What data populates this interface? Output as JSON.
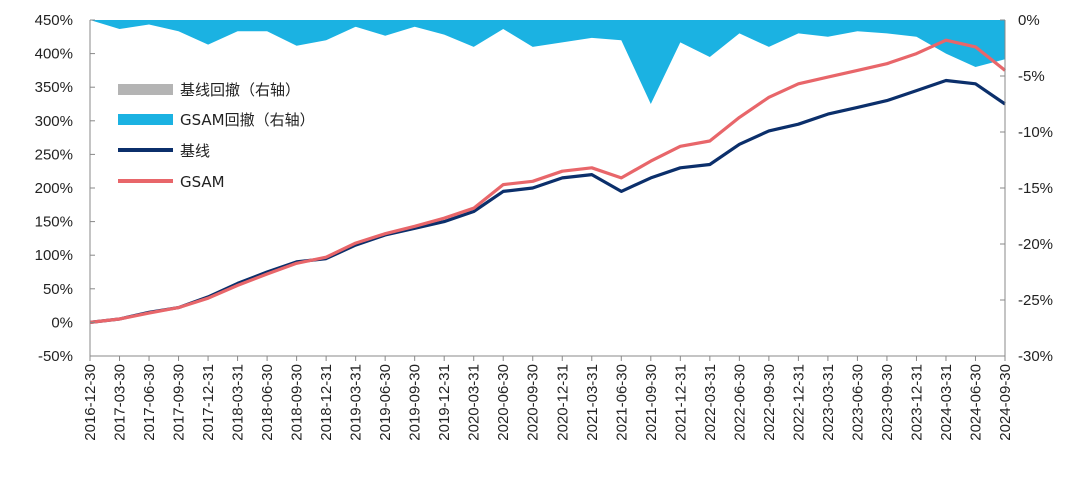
{
  "chart_data": {
    "type": "line",
    "title": "",
    "xlabel": "",
    "ylabel": "",
    "ylim": [
      -50,
      450
    ],
    "y2lim": [
      -30,
      0
    ],
    "grid": false,
    "legend_placement": "top-left",
    "y_tick_labels": [
      "450%",
      "400%",
      "350%",
      "300%",
      "250%",
      "200%",
      "150%",
      "100%",
      "50%",
      "0%",
      "-50%"
    ],
    "y2_tick_labels": [
      "0%",
      "-5%",
      "-10%",
      "-15%",
      "-20%",
      "-25%",
      "-30%"
    ],
    "x_tick_labels": [
      "2016-12-30",
      "2017-03-30",
      "2017-06-30",
      "2017-09-30",
      "2017-12-31",
      "2018-03-31",
      "2018-06-30",
      "2018-09-30",
      "2018-12-31",
      "2019-03-31",
      "2019-06-30",
      "2019-09-30",
      "2019-12-31",
      "2020-03-31",
      "2020-06-30",
      "2020-09-30",
      "2020-12-31",
      "2021-03-31",
      "2021-06-30",
      "2021-09-30",
      "2021-12-31",
      "2022-03-31",
      "2022-06-30",
      "2022-09-30",
      "2022-12-31",
      "2023-03-31",
      "2023-06-30",
      "2023-09-30",
      "2023-12-31",
      "2024-03-31",
      "2024-06-30",
      "2024-09-30"
    ],
    "x": [
      "2016-12-30",
      "2017-03-30",
      "2017-06-30",
      "2017-09-30",
      "2017-12-31",
      "2018-03-31",
      "2018-06-30",
      "2018-09-30",
      "2018-12-31",
      "2019-03-31",
      "2019-06-30",
      "2019-09-30",
      "2019-12-31",
      "2020-03-31",
      "2020-06-30",
      "2020-09-30",
      "2020-12-31",
      "2021-03-31",
      "2021-06-30",
      "2021-09-30",
      "2021-12-31",
      "2022-03-31",
      "2022-06-30",
      "2022-09-30",
      "2022-12-31",
      "2023-03-31",
      "2023-06-30",
      "2023-09-30",
      "2023-12-31",
      "2024-03-31",
      "2024-06-30",
      "2024-09-30"
    ],
    "series": [
      {
        "name": "基线回撤（右轴）",
        "axis": "right",
        "type": "area",
        "color": "#b4b4b4",
        "values": [
          0,
          -0.4,
          -0.3,
          -0.2,
          -0.5,
          -0.6,
          -0.5,
          -0.8,
          -0.7,
          -0.6,
          -0.6,
          -0.5,
          -0.5,
          -0.9,
          -0.6,
          -1.0,
          -1.3,
          -1.0,
          -1.0,
          -2.0,
          -1.2,
          -1.8,
          -1.0,
          -0.9,
          -1.1,
          -0.9,
          -0.8,
          -1.0,
          -1.3,
          -2.6,
          -3.2,
          -3.5
        ]
      },
      {
        "name": "GSAM回撤（右轴）",
        "axis": "right",
        "type": "area",
        "color": "#1bb2e2",
        "values": [
          0,
          -0.8,
          -0.4,
          -1.0,
          -2.2,
          -1.0,
          -1.0,
          -2.3,
          -1.8,
          -0.6,
          -1.4,
          -0.6,
          -1.3,
          -2.4,
          -0.8,
          -2.4,
          -2.0,
          -1.6,
          -1.8,
          -7.5,
          -2.0,
          -3.3,
          -1.2,
          -2.4,
          -1.2,
          -1.5,
          -1.0,
          -1.2,
          -1.5,
          -3.0,
          -4.2,
          -3.5
        ]
      },
      {
        "name": "基线",
        "axis": "left",
        "type": "line",
        "color": "#0b2f6b",
        "values": [
          0,
          5,
          15,
          22,
          38,
          58,
          75,
          90,
          95,
          115,
          130,
          140,
          150,
          165,
          195,
          200,
          215,
          220,
          195,
          215,
          230,
          235,
          265,
          285,
          295,
          310,
          320,
          330,
          345,
          360,
          355,
          325
        ]
      },
      {
        "name": "GSAM",
        "axis": "left",
        "type": "line",
        "color": "#e8666a",
        "values": [
          0,
          5,
          14,
          22,
          36,
          55,
          72,
          88,
          97,
          118,
          132,
          143,
          155,
          170,
          205,
          210,
          225,
          230,
          215,
          240,
          262,
          270,
          305,
          335,
          355,
          365,
          375,
          385,
          400,
          420,
          410,
          375
        ]
      }
    ]
  }
}
